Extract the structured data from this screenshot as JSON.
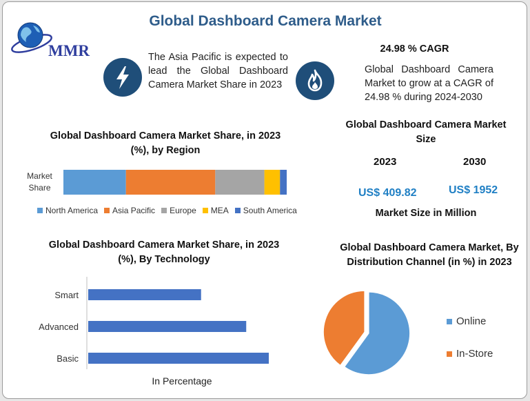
{
  "header": {
    "title": "Global Dashboard Camera Market"
  },
  "logo": {
    "text": "MMR",
    "icon": "globe-icon"
  },
  "highlights": {
    "region_text": "The Asia Pacific is expected to lead the Global Dashboard Camera Market Share in 2023",
    "region_icon": "lightning-icon",
    "cagr_title": "24.98 % CAGR",
    "cagr_text": "Global Dashboard Camera Market to grow at a CAGR of 24.98 % during 2024-2030",
    "cagr_icon": "flame-icon"
  },
  "market_size": {
    "title": "Global Dashboard Camera Market Size",
    "year1": "2023",
    "year2": "2030",
    "value1": "US$ 409.82",
    "value2": "US$ 1952",
    "footer": "Market Size in Million"
  },
  "colors": {
    "north_america": "#5b9bd5",
    "asia_pacific": "#ed7d31",
    "europe": "#a5a5a5",
    "mea": "#ffc000",
    "south_america": "#4472c4",
    "tech_bar": "#4472c4",
    "online": "#5b9bd5",
    "in_store": "#ed7d31"
  },
  "chart_data": [
    {
      "type": "bar",
      "orientation": "horizontal-stacked",
      "title": "Global Dashboard Camera Market Share, in 2023 (%), by Region",
      "categories": [
        "Market Share"
      ],
      "series": [
        {
          "name": "North America",
          "values": [
            28
          ]
        },
        {
          "name": "Asia Pacific",
          "values": [
            40
          ]
        },
        {
          "name": "Europe",
          "values": [
            22
          ]
        },
        {
          "name": "MEA",
          "values": [
            7
          ]
        },
        {
          "name": "South America",
          "values": [
            3
          ]
        }
      ],
      "legend": "bottom"
    },
    {
      "type": "bar",
      "orientation": "horizontal",
      "title": "Global Dashboard Camera Market Share, in 2023 (%), By Technology",
      "categories": [
        "Smart",
        "Advanced",
        "Basic"
      ],
      "values": [
        25,
        35,
        40
      ],
      "xlabel": "In Percentage",
      "ylabel": ""
    },
    {
      "type": "pie",
      "title": "Global Dashboard Camera Market, By Distribution Channel (in %) in 2023",
      "categories": [
        "Online",
        "In-Store"
      ],
      "values": [
        60,
        40
      ],
      "legend": "right"
    }
  ]
}
